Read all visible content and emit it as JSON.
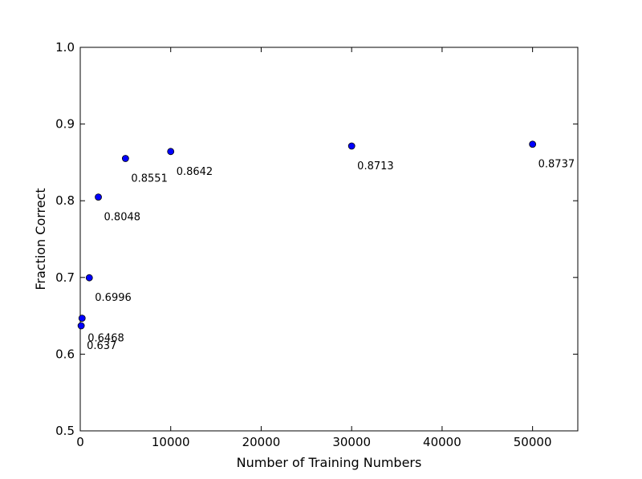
{
  "chart_data": {
    "type": "scatter",
    "xlabel": "Number of Training Numbers",
    "ylabel": "Fraction Correct",
    "xlim": [
      0,
      55000
    ],
    "ylim": [
      0.5,
      1.0
    ],
    "x_ticks": [
      0,
      10000,
      20000,
      30000,
      40000,
      50000
    ],
    "x_tick_labels": [
      "0",
      "10000",
      "20000",
      "30000",
      "40000",
      "50000"
    ],
    "y_ticks": [
      0.5,
      0.6,
      0.7,
      0.8,
      0.9,
      1.0
    ],
    "y_tick_labels": [
      "0.5",
      "0.6",
      "0.7",
      "0.8",
      "0.9",
      "1.0"
    ],
    "grid": false,
    "marker_color": "#0000ff",
    "points": [
      {
        "x": 100,
        "y": 0.637,
        "label": "0.637"
      },
      {
        "x": 200,
        "y": 0.6468,
        "label": "0.6468"
      },
      {
        "x": 1000,
        "y": 0.6996,
        "label": "0.6996"
      },
      {
        "x": 2000,
        "y": 0.8048,
        "label": "0.8048"
      },
      {
        "x": 5000,
        "y": 0.8551,
        "label": "0.8551"
      },
      {
        "x": 10000,
        "y": 0.8642,
        "label": "0.8642"
      },
      {
        "x": 30000,
        "y": 0.8713,
        "label": "0.8713"
      },
      {
        "x": 50000,
        "y": 0.8737,
        "label": "0.8737"
      }
    ]
  }
}
